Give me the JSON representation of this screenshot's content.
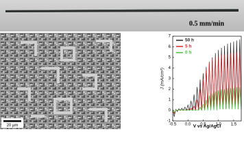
{
  "photo": {
    "label": "0.5 mm/min"
  },
  "micrograph": {
    "scale_label": "20 µm"
  },
  "chart_data": {
    "type": "line",
    "xlabel": "V vs Ag/AgCl",
    "ylabel": "J (mA/cm²)",
    "xlim": [
      -0.5,
      1.75
    ],
    "ylim": [
      -1,
      7
    ],
    "xticks": [
      {
        "value": -0.5,
        "label": "-0.5"
      },
      {
        "value": 0,
        "label": "0.0"
      },
      {
        "value": 0.5,
        "label": "0.5"
      },
      {
        "value": 1,
        "label": "1.0"
      },
      {
        "value": 1.5,
        "label": "1.5"
      }
    ],
    "yticks": [
      -1,
      0,
      1,
      2,
      3,
      4,
      5,
      6,
      7
    ],
    "legend": "upper-left",
    "x": [
      -0.5,
      -0.45,
      -0.4,
      -0.35,
      -0.3,
      -0.25,
      -0.2,
      -0.15,
      -0.1,
      -0.05,
      0,
      0.05,
      0.1,
      0.15,
      0.2,
      0.25,
      0.3,
      0.35,
      0.4,
      0.45,
      0.5,
      0.55,
      0.6,
      0.65,
      0.7,
      0.75,
      0.8,
      0.85,
      0.9,
      0.95,
      1,
      1.05,
      1.1,
      1.15,
      1.2,
      1.25,
      1.3,
      1.35,
      1.4,
      1.45,
      1.5,
      1.55,
      1.6,
      1.65,
      1.7,
      1.75
    ],
    "series": [
      {
        "name": "50 h",
        "color": "#222222",
        "values": [
          0.1,
          -0.6,
          0.1,
          -0.1,
          0.15,
          0,
          0.2,
          0,
          0.3,
          0,
          0.5,
          0,
          0.9,
          0,
          1.5,
          0,
          2.2,
          0,
          2.9,
          0,
          3.5,
          0.1,
          4.1,
          0.1,
          4.6,
          0.1,
          5.0,
          0.1,
          5.4,
          0.1,
          5.7,
          0.2,
          5.9,
          0.2,
          6.1,
          0.2,
          6.3,
          0.2,
          6.4,
          0.3,
          6.5,
          0.3,
          6.6,
          0.3,
          6.7,
          0.3
        ]
      },
      {
        "name": "5 h",
        "color": "#e0262a",
        "values": [
          0.05,
          -0.3,
          0.05,
          0,
          0.05,
          0,
          0.05,
          0,
          0.05,
          0,
          0.1,
          0,
          0.2,
          0,
          0.4,
          0,
          1.0,
          0,
          2.0,
          0,
          3.0,
          0,
          3.9,
          0.1,
          4.5,
          0.1,
          4.8,
          0.1,
          5.0,
          0.1,
          5.1,
          0.1,
          5.2,
          0.1,
          5.3,
          0.1,
          5.3,
          0.2,
          5.4,
          0.2,
          5.4,
          0.2,
          5.5,
          0.2,
          5.5,
          0.2
        ]
      },
      {
        "name": "0 h",
        "color": "#3cc43c",
        "values": [
          0.05,
          -0.2,
          0.05,
          0,
          0.05,
          0,
          0.05,
          0,
          0.05,
          0,
          0.05,
          0,
          0.05,
          0,
          0.05,
          0,
          0.05,
          0,
          0.3,
          0,
          0.6,
          0,
          1.0,
          0,
          1.4,
          0,
          1.6,
          0,
          1.8,
          0,
          1.9,
          0.1,
          2.0,
          0.1,
          2.0,
          0.1,
          2.1,
          0.1,
          2.1,
          0.1,
          2.1,
          0.1,
          2.2,
          0.1,
          2.2,
          0.1
        ]
      }
    ]
  }
}
